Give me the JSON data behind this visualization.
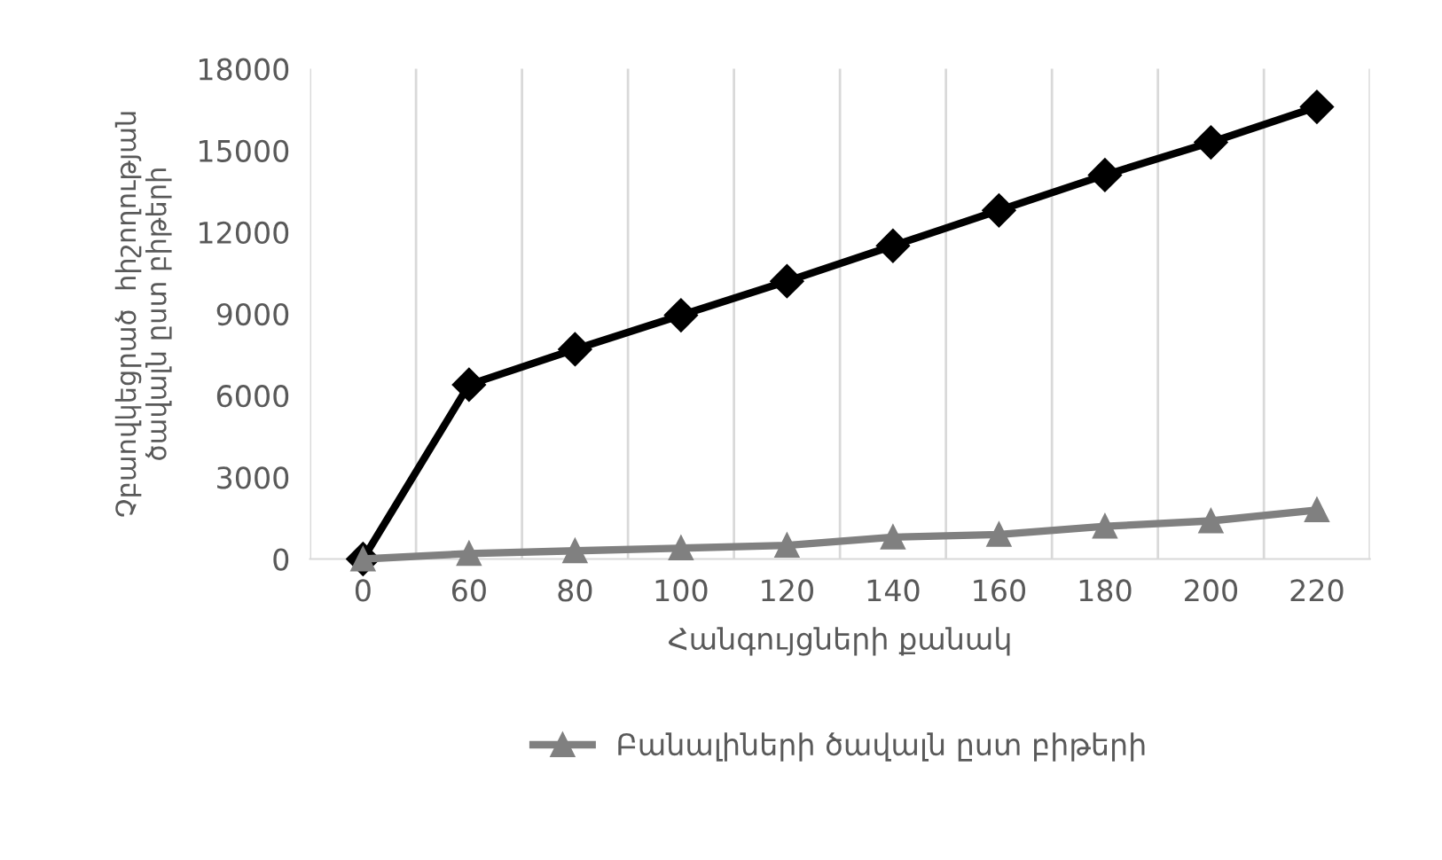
{
  "chart_data": {
    "type": "line",
    "xlabel": "Հանգույցների քանակ",
    "ylabel": "Չբաովկեցրած  հիշողության\nծավալն ըստ բիթերի",
    "categories": [
      "0",
      "60",
      "80",
      "100",
      "120",
      "140",
      "160",
      "180",
      "200",
      "220"
    ],
    "series": [
      {
        "color": "#000000",
        "marker": "diamond",
        "values": [
          0,
          6400,
          7700,
          8950,
          10200,
          11500,
          12800,
          14100,
          15300,
          16600
        ]
      },
      {
        "name": "Բանալիների ծավալն ըստ բիթերի",
        "color": "#808080",
        "marker": "triangle",
        "values": [
          0,
          200,
          300,
          400,
          500,
          800,
          900,
          1200,
          1400,
          1800
        ]
      }
    ],
    "ylim": [
      0,
      18000
    ],
    "yticks": [
      0,
      3000,
      6000,
      9000,
      12000,
      15000,
      18000
    ],
    "grid": "x",
    "legend": "bottom",
    "line_style": "solid"
  }
}
